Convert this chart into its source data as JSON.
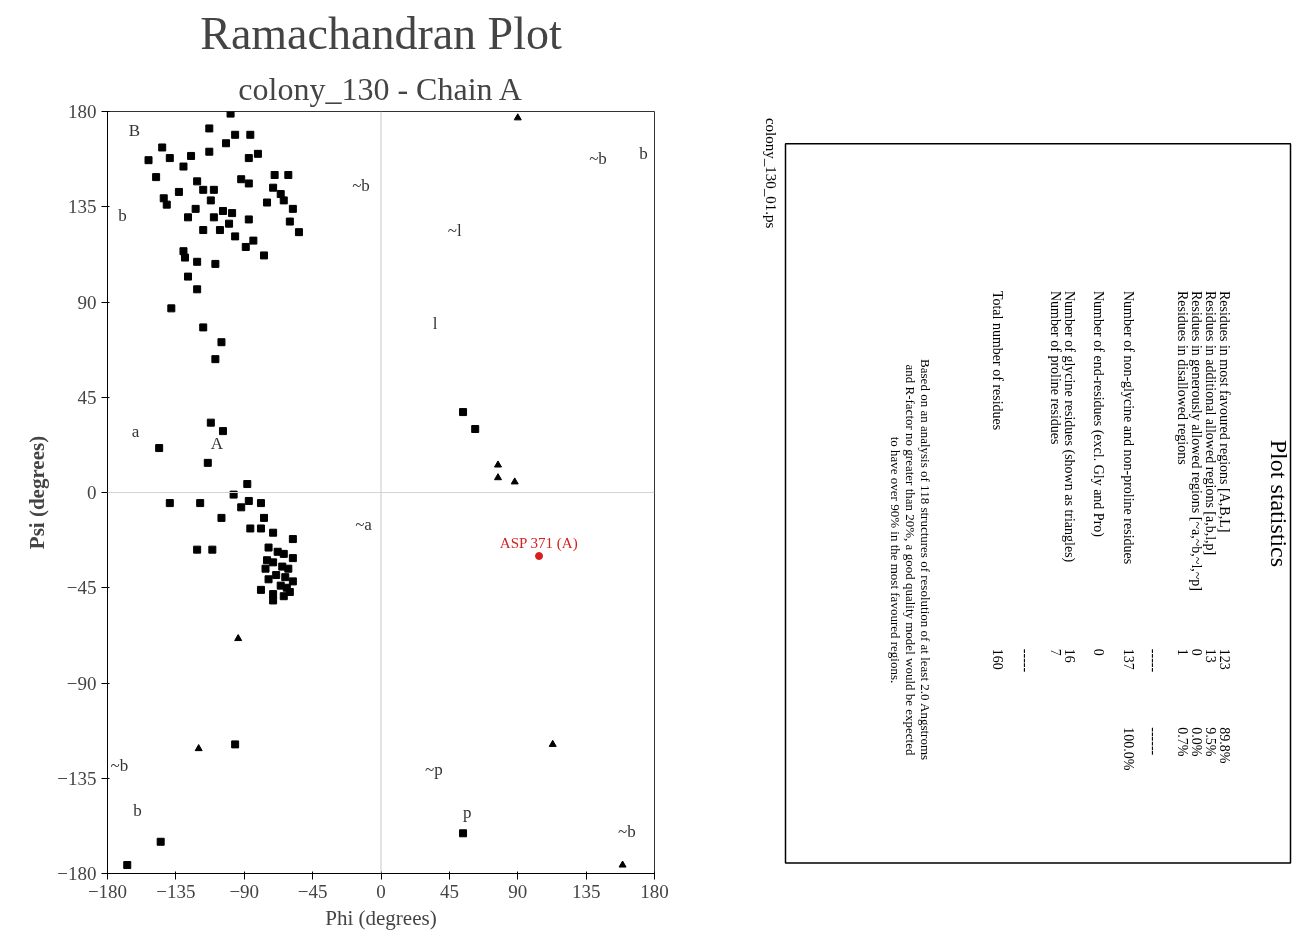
{
  "chart_data": [
    {
      "type": "scatter",
      "title": "Ramachandran Plot",
      "subtitle": "colony_130 - Chain A",
      "xlabel": "Phi (degrees)",
      "ylabel": "Psi (degrees)",
      "xlim": [
        -180,
        180
      ],
      "ylim": [
        -180,
        180
      ],
      "xticks": [
        -180,
        -135,
        -90,
        -45,
        0,
        45,
        90,
        135,
        180
      ],
      "yticks": [
        -180,
        -135,
        -90,
        -45,
        0,
        45,
        90,
        135,
        180
      ],
      "grid": false,
      "series": [
        {
          "color": "#000000",
          "marker": "square",
          "x": [
            -99,
            -113,
            -96,
            -86,
            -102,
            -144,
            -153,
            -139,
            -125,
            -130,
            -113,
            -81,
            -87,
            -148,
            -121,
            -92,
            -87,
            -70,
            -61,
            -71,
            -133,
            -117,
            -110,
            -66,
            -143,
            -141,
            -112,
            -75,
            -64,
            -58,
            -122,
            -127,
            -110,
            -104,
            -98,
            -87,
            -100,
            -60,
            -54,
            -117,
            -106,
            -96,
            -84,
            -89,
            -77,
            -130,
            -129,
            -121,
            -109,
            -127,
            -121,
            -138,
            -117,
            -105,
            -109,
            -112,
            -104,
            -146,
            -114,
            -88,
            -139,
            -97,
            -92,
            -87,
            -79,
            -119,
            -105,
            -77,
            -86,
            -79,
            -71,
            -58,
            -121,
            -111,
            -74,
            -68,
            -64,
            -58,
            -75,
            -71,
            -65,
            -61,
            -76,
            -69,
            -63,
            -58,
            -74,
            -66,
            -62,
            -79,
            -71,
            -64,
            -71,
            -60,
            54,
            62,
            -96,
            -145,
            -167,
            54
          ],
          "values": [
            179,
            172,
            169,
            169,
            165,
            163,
            157,
            158,
            159,
            154,
            161,
            160,
            158,
            149,
            147,
            148,
            146,
            150,
            150,
            144,
            142,
            143,
            143,
            141,
            139,
            136,
            138,
            137,
            138,
            134,
            134,
            130,
            130,
            133,
            132,
            129,
            127,
            128,
            123,
            124,
            124,
            121,
            119,
            116,
            112,
            114,
            111,
            109,
            108,
            102,
            96,
            87,
            78,
            71,
            63,
            33,
            29,
            21,
            14,
            4,
            -5,
            -1,
            -7,
            -4,
            -5,
            -5,
            -12,
            -12,
            -17,
            -17,
            -19,
            -22,
            -27,
            -27,
            -26,
            -28,
            -29,
            -31,
            -32,
            -33,
            -35,
            -36,
            -36,
            -39,
            -40,
            -42,
            -41,
            -44,
            -45,
            -46,
            -48,
            -49,
            -51,
            -47,
            38,
            30,
            -119,
            -165,
            -176,
            -161
          ]
        },
        {
          "color": "#000000",
          "marker": "triangle",
          "x": [
            -94,
            77,
            77,
            88,
            90,
            -120,
            113,
            159
          ],
          "values": [
            -69,
            13,
            7,
            5,
            177,
            -121,
            -119,
            -176
          ]
        },
        {
          "color": "#d62020",
          "marker": "circle",
          "x": [
            104
          ],
          "values": [
            -30
          ]
        }
      ],
      "ref_lines": [
        {
          "axis": "x",
          "value": 0,
          "color": "#c8c8c8"
        },
        {
          "axis": "y",
          "value": 0,
          "color": "#d4d4d4"
        }
      ],
      "annotations": [
        {
          "text": "ASP 371 (A)",
          "x": 104,
          "y": -30
        },
        "B",
        "b",
        "a",
        "A",
        "~a",
        "~b",
        "~l",
        "l",
        "~b",
        "b",
        "~b",
        "b",
        "~p",
        "p",
        "~b"
      ]
    },
    {
      "type": "other",
      "title": "Plot statistics",
      "subtitle": "colony_130_01.ps",
      "annotations": [
        "Residues in most favoured regions  [A,B,L]",
        "Residues in additional allowed regions  [a,b,l,p]",
        "Residues in generously allowed regions  [~a,~b,~l,~p]",
        "Residues in disallowed regions",
        "Number of non-glycine and non-proline residues",
        "Number of end-residues (excl. Gly and Pro)",
        "Number of glycine residues (shown as triangles)",
        "Number of proline residues",
        "Total number of residues",
        "123",
        "13",
        "0",
        "1",
        "137",
        "0",
        "16",
        "7",
        "160",
        "89.8%",
        "9.5%",
        "0.0%",
        "0.7%",
        "100.0%",
        "-----",
        "------",
        "-----",
        "Based on an analysis of 118 structures of resolution of at least 2.0 Angstroms",
        "and R-factor no greater than 20%, a good quality model would be expected",
        "to have over 90% in the most favoured regions."
      ]
    }
  ]
}
